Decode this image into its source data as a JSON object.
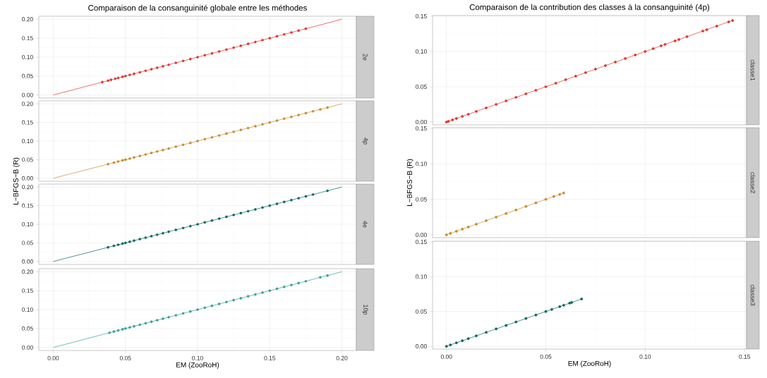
{
  "chart_data": [
    {
      "type": "scatter",
      "title": "Comparaison de la consanguinité globale entre les méthodes",
      "xlim": [
        -0.01,
        0.21
      ],
      "ylim": [
        -0.008,
        0.208
      ],
      "xticks": [
        {
          "value": 0,
          "label": null
        },
        {
          "value": 0.05,
          "label": null
        },
        {
          "value": 0.1,
          "label": null
        },
        {
          "value": 0.15,
          "label": null
        },
        {
          "value": 0.2,
          "label": null
        }
      ],
      "yticks": [
        {
          "value": 0,
          "label": "0.00"
        },
        {
          "value": 0.05,
          "label": "0.05"
        },
        {
          "value": 0.1,
          "label": "0.10"
        },
        {
          "value": 0.15,
          "label": "0.15"
        },
        {
          "value": 0.2,
          "label": "0.20"
        }
      ],
      "grid": true,
      "marker": "circle",
      "tick_labels": "y",
      "series": [
        {
          "name": "2e",
          "type": "scatter",
          "color": "#e0332b",
          "x": [
            0.034,
            0.038,
            0.04,
            0.043,
            0.045,
            0.048,
            0.05,
            0.053,
            0.056,
            0.06,
            0.064,
            0.068,
            0.072,
            0.076,
            0.08,
            0.085,
            0.09,
            0.095,
            0.1,
            0.105,
            0.11,
            0.115,
            0.12,
            0.125,
            0.13,
            0.135,
            0.14,
            0.145,
            0.15,
            0.155,
            0.16,
            0.165,
            0.17,
            0.175
          ],
          "values": [
            0.034,
            0.038,
            0.04,
            0.043,
            0.045,
            0.048,
            0.05,
            0.053,
            0.056,
            0.06,
            0.064,
            0.068,
            0.072,
            0.076,
            0.08,
            0.085,
            0.09,
            0.095,
            0.1,
            0.105,
            0.11,
            0.115,
            0.12,
            0.125,
            0.13,
            0.135,
            0.14,
            0.145,
            0.15,
            0.155,
            0.16,
            0.165,
            0.17,
            0.175
          ]
        },
        {
          "type": "line",
          "marker": "none",
          "color": "#e0332b",
          "x": [
            0,
            0.2
          ],
          "values": [
            0,
            0.2
          ]
        }
      ]
    },
    {
      "type": "scatter",
      "ylabel": "L−BFGS−B (R)",
      "xlim": [
        -0.01,
        0.21
      ],
      "ylim": [
        -0.008,
        0.208
      ],
      "xticks": [
        {
          "value": 0,
          "label": null
        },
        {
          "value": 0.05,
          "label": null
        },
        {
          "value": 0.1,
          "label": null
        },
        {
          "value": 0.15,
          "label": null
        },
        {
          "value": 0.2,
          "label": null
        }
      ],
      "yticks": [
        {
          "value": 0,
          "label": "0.00"
        },
        {
          "value": 0.05,
          "label": "0.05"
        },
        {
          "value": 0.1,
          "label": "0.10"
        },
        {
          "value": 0.15,
          "label": "0.15"
        },
        {
          "value": 0.2,
          "label": "0.20"
        }
      ],
      "grid": true,
      "marker": "circle",
      "tick_labels": "y",
      "series": [
        {
          "name": "4p",
          "type": "scatter",
          "color": "#c98a2d",
          "x": [
            0.038,
            0.042,
            0.045,
            0.048,
            0.05,
            0.053,
            0.056,
            0.06,
            0.064,
            0.068,
            0.072,
            0.076,
            0.08,
            0.085,
            0.09,
            0.095,
            0.1,
            0.105,
            0.11,
            0.115,
            0.12,
            0.125,
            0.13,
            0.135,
            0.14,
            0.145,
            0.15,
            0.155,
            0.16,
            0.165,
            0.17,
            0.175,
            0.18,
            0.185,
            0.19
          ],
          "values": [
            0.038,
            0.042,
            0.045,
            0.048,
            0.05,
            0.053,
            0.056,
            0.06,
            0.064,
            0.068,
            0.072,
            0.076,
            0.08,
            0.085,
            0.09,
            0.095,
            0.1,
            0.105,
            0.11,
            0.115,
            0.12,
            0.125,
            0.13,
            0.135,
            0.14,
            0.145,
            0.15,
            0.155,
            0.16,
            0.165,
            0.17,
            0.175,
            0.18,
            0.185,
            0.19
          ]
        },
        {
          "type": "line",
          "marker": "none",
          "color": "#c98a2d",
          "x": [
            0,
            0.2
          ],
          "values": [
            0,
            0.2
          ]
        }
      ]
    },
    {
      "type": "scatter",
      "xlim": [
        -0.01,
        0.21
      ],
      "ylim": [
        -0.008,
        0.208
      ],
      "xticks": [
        {
          "value": 0,
          "label": null
        },
        {
          "value": 0.05,
          "label": null
        },
        {
          "value": 0.1,
          "label": null
        },
        {
          "value": 0.15,
          "label": null
        },
        {
          "value": 0.2,
          "label": null
        }
      ],
      "yticks": [
        {
          "value": 0,
          "label": "0.00"
        },
        {
          "value": 0.05,
          "label": "0.05"
        },
        {
          "value": 0.1,
          "label": "0.10"
        },
        {
          "value": 0.15,
          "label": "0.15"
        },
        {
          "value": 0.2,
          "label": "0.20"
        }
      ],
      "grid": true,
      "marker": "circle",
      "tick_labels": "y",
      "series": [
        {
          "name": "4e",
          "type": "scatter",
          "color": "#00665c",
          "x": [
            0.038,
            0.042,
            0.045,
            0.048,
            0.05,
            0.053,
            0.056,
            0.06,
            0.064,
            0.068,
            0.072,
            0.076,
            0.08,
            0.085,
            0.09,
            0.095,
            0.1,
            0.105,
            0.11,
            0.115,
            0.12,
            0.125,
            0.13,
            0.135,
            0.14,
            0.145,
            0.15,
            0.155,
            0.16,
            0.165,
            0.17,
            0.175,
            0.18,
            0.19
          ],
          "values": [
            0.038,
            0.042,
            0.045,
            0.048,
            0.05,
            0.053,
            0.056,
            0.06,
            0.064,
            0.068,
            0.072,
            0.076,
            0.08,
            0.085,
            0.09,
            0.095,
            0.1,
            0.105,
            0.11,
            0.115,
            0.12,
            0.125,
            0.13,
            0.135,
            0.14,
            0.145,
            0.15,
            0.155,
            0.16,
            0.165,
            0.17,
            0.175,
            0.18,
            0.19
          ]
        },
        {
          "type": "line",
          "marker": "none",
          "color": "#00665c",
          "x": [
            0,
            0.2
          ],
          "values": [
            0,
            0.2
          ]
        }
      ]
    },
    {
      "type": "scatter",
      "xlabel": "EM (ZooRoH)",
      "xlim": [
        -0.01,
        0.21
      ],
      "ylim": [
        -0.008,
        0.208
      ],
      "xticks": [
        {
          "value": 0,
          "label": "0.00"
        },
        {
          "value": 0.05,
          "label": "0.05"
        },
        {
          "value": 0.1,
          "label": "0.10"
        },
        {
          "value": 0.15,
          "label": "0.15"
        },
        {
          "value": 0.2,
          "label": "0.20"
        }
      ],
      "yticks": [
        {
          "value": 0,
          "label": "0.00"
        },
        {
          "value": 0.05,
          "label": "0.05"
        },
        {
          "value": 0.1,
          "label": "0.10"
        },
        {
          "value": 0.15,
          "label": "0.15"
        },
        {
          "value": 0.2,
          "label": "0.20"
        }
      ],
      "grid": true,
      "marker": "circle",
      "series": [
        {
          "name": "10p",
          "type": "scatter",
          "color": "#35a093",
          "x": [
            0.039,
            0.042,
            0.045,
            0.048,
            0.05,
            0.053,
            0.056,
            0.06,
            0.064,
            0.068,
            0.072,
            0.076,
            0.08,
            0.085,
            0.09,
            0.095,
            0.1,
            0.105,
            0.11,
            0.115,
            0.12,
            0.125,
            0.13,
            0.135,
            0.14,
            0.145,
            0.15,
            0.155,
            0.16,
            0.165,
            0.17,
            0.175,
            0.185,
            0.19
          ],
          "values": [
            0.039,
            0.042,
            0.045,
            0.048,
            0.05,
            0.053,
            0.056,
            0.06,
            0.064,
            0.068,
            0.072,
            0.076,
            0.08,
            0.085,
            0.09,
            0.095,
            0.1,
            0.105,
            0.11,
            0.115,
            0.12,
            0.125,
            0.13,
            0.135,
            0.14,
            0.145,
            0.15,
            0.155,
            0.16,
            0.165,
            0.17,
            0.175,
            0.185,
            0.19
          ]
        },
        {
          "type": "line",
          "marker": "none",
          "color": "#35a093",
          "x": [
            0,
            0.2
          ],
          "values": [
            0,
            0.2
          ]
        }
      ]
    },
    {
      "type": "line",
      "title": "Comparaison de la contribution des classes à la consanguinité (4p)",
      "xlim": [
        -0.007,
        0.151
      ],
      "ylim": [
        -0.004,
        0.151
      ],
      "xticks": [
        {
          "value": 0,
          "label": null
        },
        {
          "value": 0.05,
          "label": null
        },
        {
          "value": 0.1,
          "label": null
        },
        {
          "value": 0.15,
          "label": null
        }
      ],
      "yticks": [
        {
          "value": 0,
          "label": "0.00"
        },
        {
          "value": 0.05,
          "label": "0.05"
        },
        {
          "value": 0.1,
          "label": "0.10"
        },
        {
          "value": 0.15,
          "label": "0.15"
        }
      ],
      "grid": true,
      "marker": "circle",
      "tick_labels": "y",
      "series": [
        {
          "name": "classe1",
          "color": "#e0332b",
          "x": [
            0,
            0.001,
            0.003,
            0.005,
            0.008,
            0.011,
            0.015,
            0.02,
            0.025,
            0.03,
            0.035,
            0.04,
            0.045,
            0.05,
            0.055,
            0.06,
            0.065,
            0.07,
            0.075,
            0.08,
            0.085,
            0.09,
            0.095,
            0.1,
            0.104,
            0.108,
            0.11,
            0.115,
            0.117,
            0.121,
            0.129,
            0.131,
            0.136,
            0.142,
            0.144
          ],
          "values": [
            0,
            0.001,
            0.003,
            0.005,
            0.008,
            0.011,
            0.015,
            0.02,
            0.025,
            0.03,
            0.035,
            0.04,
            0.045,
            0.05,
            0.055,
            0.06,
            0.065,
            0.07,
            0.075,
            0.08,
            0.085,
            0.09,
            0.095,
            0.1,
            0.104,
            0.108,
            0.11,
            0.115,
            0.117,
            0.121,
            0.129,
            0.131,
            0.136,
            0.142,
            0.144
          ]
        }
      ]
    },
    {
      "type": "line",
      "ylabel": "L−BFGS−B (R)",
      "xlim": [
        -0.007,
        0.151
      ],
      "ylim": [
        -0.004,
        0.151
      ],
      "xticks": [
        {
          "value": 0,
          "label": null
        },
        {
          "value": 0.05,
          "label": null
        },
        {
          "value": 0.1,
          "label": null
        },
        {
          "value": 0.15,
          "label": null
        }
      ],
      "yticks": [
        {
          "value": 0,
          "label": "0.00"
        },
        {
          "value": 0.05,
          "label": "0.05"
        },
        {
          "value": 0.1,
          "label": "0.10"
        },
        {
          "value": 0.15,
          "label": "0.15"
        }
      ],
      "grid": true,
      "marker": "circle",
      "tick_labels": "y",
      "series": [
        {
          "name": "classe2",
          "color": "#c98a2d",
          "x": [
            0,
            0.002,
            0.005,
            0.008,
            0.011,
            0.015,
            0.02,
            0.025,
            0.03,
            0.035,
            0.04,
            0.045,
            0.05,
            0.054,
            0.057,
            0.059
          ],
          "values": [
            0,
            0.002,
            0.005,
            0.008,
            0.011,
            0.015,
            0.02,
            0.025,
            0.03,
            0.035,
            0.04,
            0.045,
            0.05,
            0.054,
            0.057,
            0.059
          ]
        }
      ]
    },
    {
      "type": "line",
      "xlabel": "EM (ZooRoH)",
      "xlim": [
        -0.007,
        0.151
      ],
      "ylim": [
        -0.004,
        0.151
      ],
      "xticks": [
        {
          "value": 0,
          "label": "0.00"
        },
        {
          "value": 0.05,
          "label": "0.05"
        },
        {
          "value": 0.1,
          "label": "0.10"
        },
        {
          "value": 0.15,
          "label": "0.15"
        }
      ],
      "yticks": [
        {
          "value": 0,
          "label": "0.00"
        },
        {
          "value": 0.05,
          "label": "0.05"
        },
        {
          "value": 0.1,
          "label": "0.10"
        },
        {
          "value": 0.15,
          "label": "0.15"
        }
      ],
      "grid": true,
      "marker": "circle",
      "series": [
        {
          "name": "classe3",
          "color": "#00665c",
          "x": [
            0,
            0.002,
            0.005,
            0.008,
            0.011,
            0.015,
            0.02,
            0.025,
            0.03,
            0.035,
            0.04,
            0.045,
            0.05,
            0.053,
            0.057,
            0.059,
            0.062,
            0.063,
            0.068
          ],
          "values": [
            0,
            0.002,
            0.005,
            0.008,
            0.011,
            0.015,
            0.02,
            0.025,
            0.03,
            0.035,
            0.04,
            0.045,
            0.05,
            0.053,
            0.057,
            0.059,
            0.062,
            0.063,
            0.068
          ]
        }
      ]
    }
  ]
}
